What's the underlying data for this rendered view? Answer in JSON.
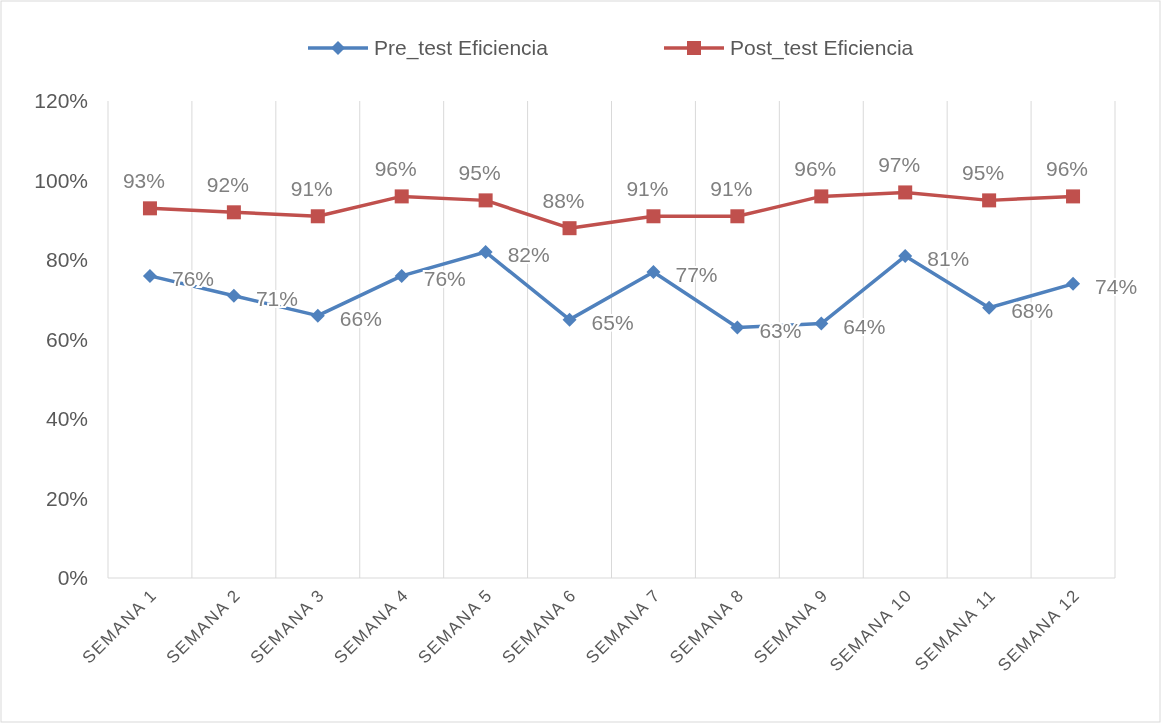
{
  "chart_data": {
    "type": "line",
    "categories": [
      "SEMANA 1",
      "SEMANA 2",
      "SEMANA 3",
      "SEMANA 4",
      "SEMANA 5",
      "SEMANA 6",
      "SEMANA 7",
      "SEMANA 8",
      "SEMANA 9",
      "SEMANA 10",
      "SEMANA 11",
      "SEMANA 12"
    ],
    "series": [
      {
        "name": "Pre_test Eficiencia",
        "color": "#4f81bd",
        "marker": "diamond",
        "values": [
          76,
          71,
          66,
          76,
          82,
          65,
          77,
          63,
          64,
          81,
          68,
          74
        ],
        "value_labels": [
          "76%",
          "71%",
          "66%",
          "76%",
          "82%",
          "65%",
          "77%",
          "63%",
          "64%",
          "81%",
          "68%",
          "74%"
        ]
      },
      {
        "name": "Post_test Eficiencia",
        "color": "#c0504d",
        "marker": "square",
        "values": [
          93,
          92,
          91,
          96,
          95,
          88,
          91,
          91,
          96,
          97,
          95,
          96
        ],
        "value_labels": [
          "93%",
          "92%",
          "91%",
          "96%",
          "95%",
          "88%",
          "91%",
          "91%",
          "96%",
          "97%",
          "95%",
          "96%"
        ]
      }
    ],
    "ylim": [
      0,
      120
    ],
    "yticks": [
      {
        "value": 0,
        "label": "0%"
      },
      {
        "value": 20,
        "label": "20%"
      },
      {
        "value": 40,
        "label": "40%"
      },
      {
        "value": 60,
        "label": "60%"
      },
      {
        "value": 80,
        "label": "80%"
      },
      {
        "value": 100,
        "label": "100%"
      },
      {
        "value": 120,
        "label": "120%"
      }
    ],
    "grid": "x",
    "legend": "top",
    "line_style": "solid"
  }
}
